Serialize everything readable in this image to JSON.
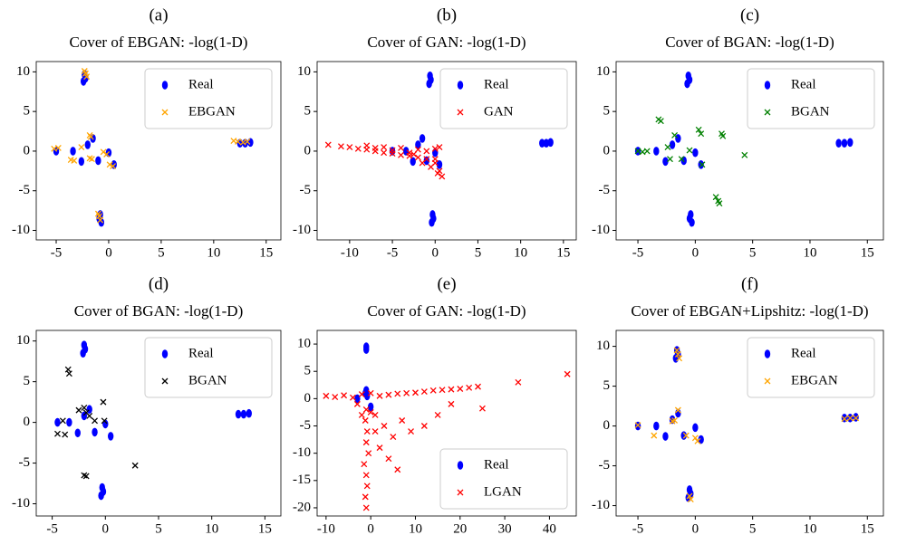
{
  "chart_data": [
    {
      "type": "scatter",
      "label": "(a)",
      "title": "Cover of EBGAN: -log(1-D)",
      "xlim": [
        -6.9,
        16.4
      ],
      "ylim": [
        -11.2,
        11.3
      ],
      "xticks": [
        -5,
        0,
        5,
        10,
        15
      ],
      "yticks": [
        -10,
        -5,
        0,
        5,
        10
      ],
      "legend": "upper right",
      "series": [
        {
          "name": "Real",
          "color": "#0000ff",
          "marker": "o",
          "x": [
            -2.3,
            -2.2,
            -2.4,
            12.5,
            13,
            13.5,
            -0.8,
            -0.9,
            -0.7,
            -5,
            -1.5,
            -1,
            -2.6,
            0,
            0.5,
            -2,
            -3.4
          ],
          "y": [
            9.7,
            9.2,
            8.8,
            1,
            1,
            1.1,
            -8,
            -8.5,
            -9,
            0,
            1.6,
            -1.2,
            -1.3,
            -0.2,
            -1.7,
            0.8,
            0
          ]
        },
        {
          "name": "EBGAN",
          "color": "#ffa500",
          "marker": "x",
          "x": [
            -2.2,
            -2.1,
            -2.3,
            12.3,
            12.8,
            13.2,
            11.9,
            -0.9,
            -0.8,
            -1,
            -5.2,
            -4.8,
            -3.6,
            -3.3,
            -1.8,
            -1.7,
            -1.6,
            -1.8,
            0.1,
            0.4,
            -0.5,
            -0.2,
            -2.6
          ],
          "y": [
            9.8,
            9.4,
            10.1,
            1.2,
            1.1,
            1.2,
            1.3,
            -8.2,
            -8.7,
            -7.9,
            0.3,
            0.4,
            -1.1,
            -1.2,
            2,
            1.8,
            -1,
            -0.9,
            -1.7,
            -1.9,
            -0.1,
            -0.4,
            0.5
          ]
        }
      ]
    },
    {
      "type": "scatter",
      "label": "(b)",
      "title": "Cover of GAN: -log(1-D)",
      "xlim": [
        -13.8,
        16.5
      ],
      "ylim": [
        -11.2,
        11.3
      ],
      "xticks": [
        -10,
        -5,
        0,
        5,
        10,
        15
      ],
      "yticks": [
        -10,
        -5,
        0,
        5,
        10
      ],
      "legend": "upper right",
      "series": [
        {
          "name": "Real",
          "color": "#0000ff",
          "marker": "o",
          "x": [
            -0.6,
            -0.5,
            -0.7,
            12.5,
            13,
            13.5,
            -0.3,
            -0.2,
            -0.4,
            -5,
            -1.5,
            -1,
            -2.6,
            0,
            0.5,
            -2,
            -3.4
          ],
          "y": [
            9.5,
            9,
            8.5,
            1,
            1,
            1.1,
            -8,
            -8.5,
            -9,
            0,
            1.6,
            -1.2,
            -1.3,
            -0.2,
            -1.7,
            0.8,
            0
          ]
        },
        {
          "name": "GAN",
          "color": "#ff0000",
          "marker": "x",
          "x": [
            -12.5,
            -11,
            -10,
            -9,
            -8,
            -7,
            -6,
            -5,
            -4,
            -3,
            -2,
            -1,
            0,
            0.5,
            0.8,
            -2,
            -1,
            0,
            0.5,
            -4,
            -6,
            -8,
            0,
            -0.5,
            0.3,
            -3,
            -1.5,
            -7,
            -5,
            -2.5
          ],
          "y": [
            0.8,
            0.6,
            0.5,
            0.3,
            0.2,
            0,
            -0.2,
            -0.3,
            -0.5,
            -0.6,
            -0.8,
            -1,
            -1.5,
            -2.5,
            -3.2,
            0.2,
            0,
            0.3,
            0.5,
            0.4,
            0.5,
            0.7,
            -1,
            -2,
            -2.8,
            -0.2,
            -1.5,
            0.4,
            0.1,
            -0.4
          ]
        }
      ]
    },
    {
      "type": "scatter",
      "label": "(c)",
      "title": "Cover of BGAN: -log(1-D)",
      "xlim": [
        -6.9,
        16.4
      ],
      "ylim": [
        -11.2,
        11.3
      ],
      "xticks": [
        -5,
        0,
        5,
        10,
        15
      ],
      "yticks": [
        -10,
        -5,
        0,
        5,
        10
      ],
      "legend": "upper right",
      "series": [
        {
          "name": "Real",
          "color": "#0000ff",
          "marker": "o",
          "x": [
            -0.6,
            -0.5,
            -0.7,
            12.5,
            13,
            13.5,
            -0.4,
            -0.5,
            -0.3,
            -5,
            -1.5,
            -1,
            -2.6,
            0,
            0.5,
            -2,
            -3.4
          ],
          "y": [
            9.5,
            9,
            8.5,
            1,
            1,
            1.1,
            -8,
            -8.5,
            -9,
            0,
            1.6,
            -1.2,
            -1.3,
            -0.2,
            -1.7,
            0.8,
            0
          ]
        },
        {
          "name": "BGAN",
          "color": "#008000",
          "marker": "x",
          "x": [
            -5,
            -4.6,
            -4.2,
            -3.2,
            -3,
            -2.4,
            -2.2,
            -1.2,
            -1.8,
            0.3,
            0.5,
            0.6,
            2.3,
            2.4,
            4.3,
            1.8,
            2,
            2.1,
            -0.5
          ],
          "y": [
            0,
            -0.1,
            0,
            4,
            3.8,
            0.5,
            -1,
            -1,
            2,
            2.7,
            2.2,
            -1.7,
            2.2,
            1.9,
            -0.5,
            -5.8,
            -6.3,
            -6.6,
            0.1
          ]
        }
      ]
    },
    {
      "type": "scatter",
      "label": "(d)",
      "title": "Cover of BGAN: -log(1-D)",
      "xlim": [
        -6.5,
        16.5
      ],
      "ylim": [
        -11.5,
        11.3
      ],
      "xticks": [
        -5,
        0,
        5,
        10,
        15
      ],
      "yticks": [
        -10,
        -5,
        0,
        5,
        10
      ],
      "legend": "upper right",
      "series": [
        {
          "name": "Real",
          "color": "#0000ff",
          "marker": "o",
          "x": [
            -2,
            -1.9,
            -2.1,
            12.5,
            13,
            13.5,
            -0.3,
            -0.2,
            -0.4,
            -4.5,
            -1.5,
            -1,
            -2.6,
            0,
            0.5,
            -2,
            -3.4
          ],
          "y": [
            9.5,
            9,
            8.5,
            1,
            1,
            1.1,
            -8,
            -8.5,
            -9,
            0,
            1.6,
            -1.2,
            -1.3,
            -0.2,
            -1.7,
            0.8,
            0
          ]
        },
        {
          "name": "BGAN",
          "color": "#000000",
          "marker": "x",
          "x": [
            -4.5,
            -3.8,
            -4,
            -3.5,
            -3.4,
            -2,
            -1.8,
            -1.5,
            -1,
            -0.2,
            -0.1,
            -2,
            -1.8,
            2.8,
            -2.5
          ],
          "y": [
            -1.4,
            -1.5,
            0.2,
            6.5,
            6,
            1.8,
            1.2,
            0.8,
            0.2,
            2.5,
            0.2,
            -6.5,
            -6.6,
            -5.3,
            1.5
          ]
        }
      ]
    },
    {
      "type": "scatter",
      "label": "(e)",
      "title": "Cover of GAN: -log(1-D)",
      "xlim": [
        -12,
        46
      ],
      "ylim": [
        -21.5,
        12.5
      ],
      "xticks": [
        -10,
        0,
        10,
        20,
        30,
        40
      ],
      "yticks": [
        -20,
        -15,
        -10,
        -5,
        0,
        5,
        10
      ],
      "legend": "lower right",
      "series": [
        {
          "name": "Real",
          "color": "#0000ff",
          "marker": "o",
          "x": [
            -1,
            -1,
            -1,
            -1.2,
            -0.8,
            0,
            -3
          ],
          "y": [
            9.5,
            9,
            1.5,
            1,
            0.5,
            -1.5,
            0
          ]
        },
        {
          "name": "LGAN",
          "color": "#ff0000",
          "marker": "x",
          "x": [
            -10,
            -8,
            -6,
            -4,
            -2,
            0,
            2,
            4,
            6,
            8,
            10,
            12,
            14,
            16,
            18,
            20,
            22,
            24,
            25,
            33,
            44,
            -1,
            -1.2,
            -0.8,
            -1,
            -0.5,
            -1.5,
            -1,
            -0.8,
            -1.2,
            -1,
            1,
            3,
            5,
            7,
            9,
            12,
            2,
            4,
            15,
            18,
            -3,
            -2,
            0,
            1,
            6
          ],
          "y": [
            0.5,
            0.3,
            0.6,
            0.2,
            0.8,
            1,
            0.5,
            0.7,
            0.9,
            1,
            1.1,
            1.3,
            1.5,
            1.6,
            1.7,
            1.8,
            2,
            2.2,
            -1.8,
            3,
            4.5,
            -2,
            -4,
            -6,
            -8,
            -10,
            -12,
            -14,
            -16,
            -18,
            -20,
            -3,
            -5,
            -7,
            -4,
            -6,
            -5,
            -9,
            -11,
            -3,
            -1,
            -1,
            -3,
            -2.5,
            -6,
            -13
          ]
        }
      ]
    },
    {
      "type": "scatter",
      "label": "(f)",
      "title": "Cover of EBGAN+Lipshitz: -log(1-D)",
      "xlim": [
        -6.9,
        16.4
      ],
      "ylim": [
        -11.3,
        12
      ],
      "xticks": [
        -5,
        0,
        5,
        10,
        15
      ],
      "yticks": [
        -10,
        -5,
        0,
        5,
        10
      ],
      "legend": "upper right",
      "series": [
        {
          "name": "Real",
          "color": "#0000ff",
          "marker": "o",
          "x": [
            -1.6,
            -1.5,
            -1.7,
            13,
            13.5,
            14,
            -0.5,
            -0.4,
            -0.6,
            -5,
            -1.5,
            -1,
            -2.6,
            0,
            0.5,
            -2,
            -3.4
          ],
          "y": [
            9.5,
            9,
            8.5,
            1,
            1,
            1.1,
            -8,
            -8.5,
            -9,
            0,
            1.6,
            -1.2,
            -1.3,
            -0.2,
            -1.7,
            0.8,
            0
          ]
        },
        {
          "name": "EBGAN",
          "color": "#ffa500",
          "marker": "x",
          "x": [
            -1.5,
            -1.4,
            -1.6,
            13.5,
            13,
            14,
            -0.5,
            -0.4,
            -5,
            -3.6,
            -1.5,
            -2,
            -1.8,
            -0.8,
            0.2,
            0
          ],
          "y": [
            9,
            8.5,
            9.5,
            1,
            0.9,
            1,
            -8.8,
            -9.2,
            0.1,
            -1.2,
            2,
            0.6,
            0.7,
            -1.2,
            -1.9,
            -1.5
          ]
        }
      ]
    }
  ]
}
